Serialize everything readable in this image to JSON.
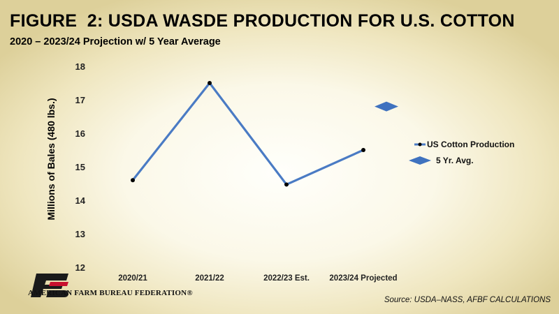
{
  "title": "FIGURE  2: USDA WASDE PRODUCTION FOR U.S. COTTON",
  "subtitle": "2020 – 2023/24 Projection w/ 5 Year Average",
  "source": "Source: USDA–NASS, AFBF CALCULATIONS",
  "logo": {
    "text": "AMERICAN FARM BUREAU FEDERATION®",
    "mark_text": "FB",
    "colors": {
      "mark": "#1a1a1a",
      "accent": "#c8102e"
    }
  },
  "colors": {
    "line": "#4a7bc4",
    "marker": "#000000",
    "diamond": "#3f72bf"
  },
  "chart_data": {
    "type": "line",
    "categories": [
      "2020/21",
      "2021/22",
      "2022/23 Est.",
      "2023/24 Projected"
    ],
    "series": [
      {
        "name": "US Cotton Production",
        "values": [
          14.6,
          17.5,
          14.47,
          15.5
        ]
      }
    ],
    "five_year_avg": {
      "name": "5 Yr. Avg.",
      "value": 16.8
    },
    "title": "FIGURE  2: USDA WASDE PRODUCTION FOR U.S. COTTON",
    "subtitle": "2020 – 2023/24 Projection w/ 5 Year Average",
    "xlabel": "",
    "ylabel": "Millions of Bales (480 lbs.)",
    "ylim": [
      12,
      18
    ],
    "yticks": [
      12,
      13,
      14,
      15,
      16,
      17,
      18
    ],
    "grid": false,
    "legend": "right"
  }
}
